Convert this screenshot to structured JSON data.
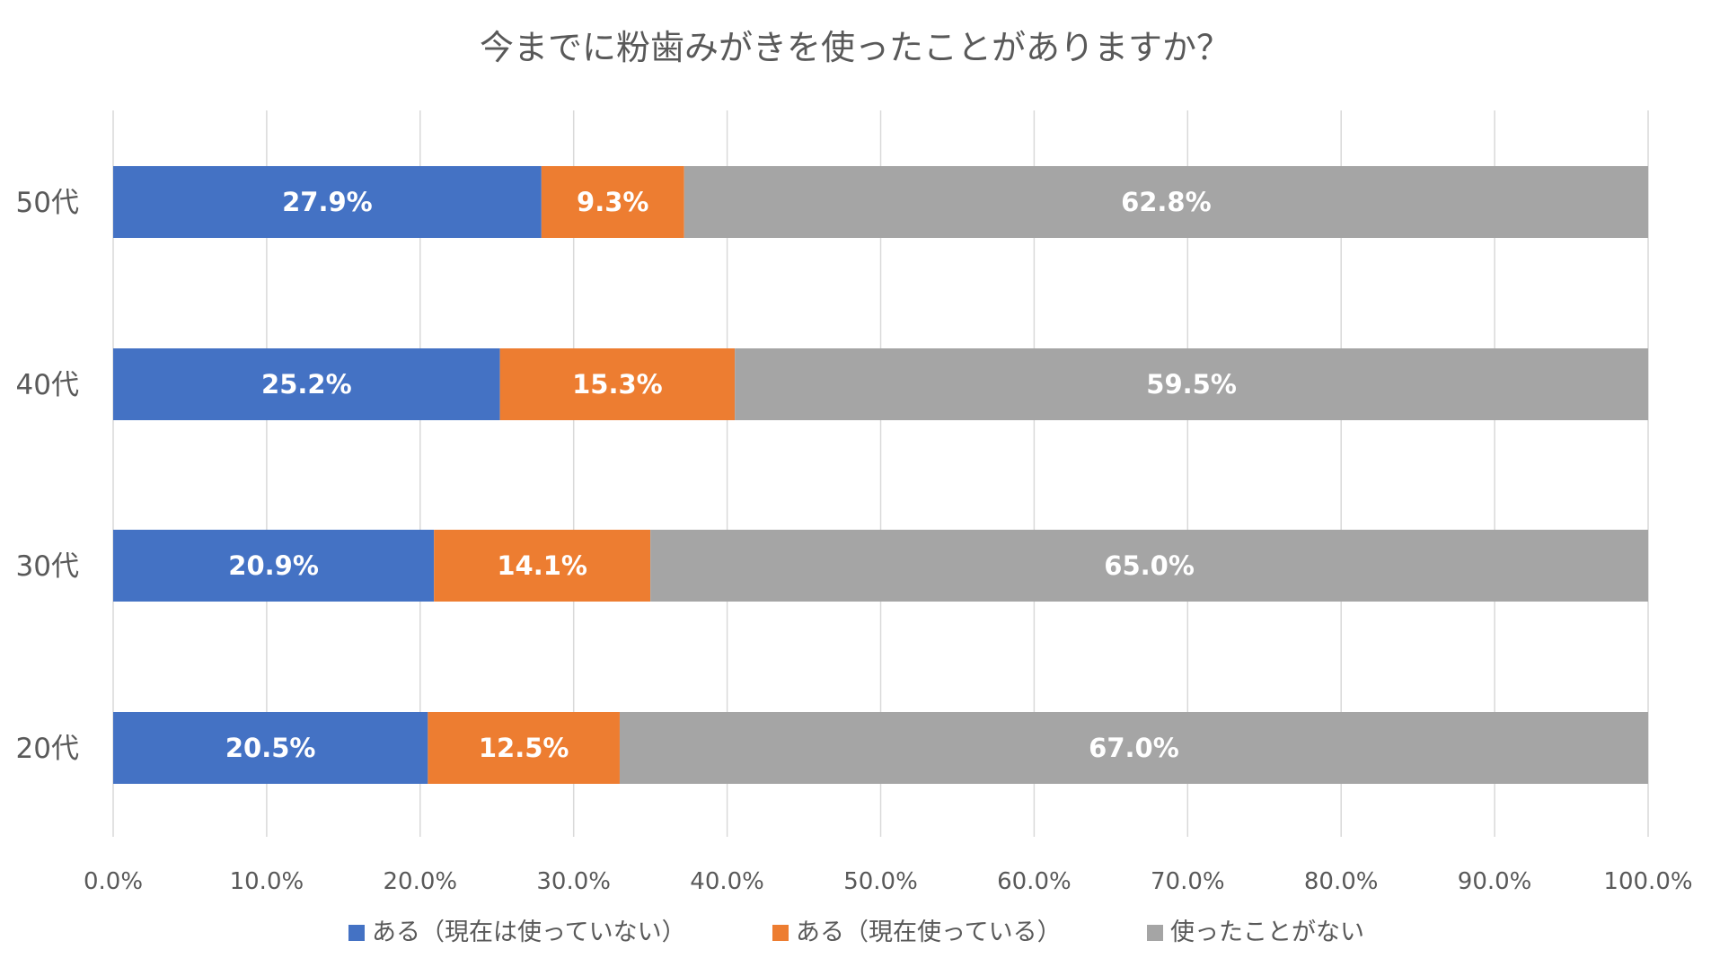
{
  "chart_data": {
    "type": "bar",
    "orientation": "horizontal",
    "stacked": true,
    "title": "今までに粉歯みがきを使ったことがありますか？",
    "categories": [
      "50代",
      "40代",
      "30代",
      "20代"
    ],
    "series": [
      {
        "name": "ある（現在は使っていない）",
        "color": "#4472C4",
        "values": [
          27.9,
          25.2,
          20.9,
          20.5
        ],
        "labels": [
          "27.9%",
          "25.2%",
          "20.9%",
          "20.5%"
        ]
      },
      {
        "name": "ある（現在使っている）",
        "color": "#ED7D31",
        "values": [
          9.3,
          15.3,
          14.1,
          12.5
        ],
        "labels": [
          "9.3%",
          "15.3%",
          "14.1%",
          "12.5%"
        ]
      },
      {
        "name": "使ったことがない",
        "color": "#A5A5A5",
        "values": [
          62.8,
          59.5,
          65.0,
          67.0
        ],
        "labels": [
          "62.8%",
          "59.5%",
          "65.0%",
          "67.0%"
        ]
      }
    ],
    "xlim": [
      0,
      100
    ],
    "xticks": [
      0,
      10,
      20,
      30,
      40,
      50,
      60,
      70,
      80,
      90,
      100
    ],
    "xtick_labels": [
      "0.0%",
      "10.0%",
      "20.0%",
      "30.0%",
      "40.0%",
      "50.0%",
      "60.0%",
      "70.0%",
      "80.0%",
      "90.0%",
      "100.0%"
    ],
    "grid": true,
    "legend_position": "bottom",
    "xlabel": "",
    "ylabel": ""
  }
}
